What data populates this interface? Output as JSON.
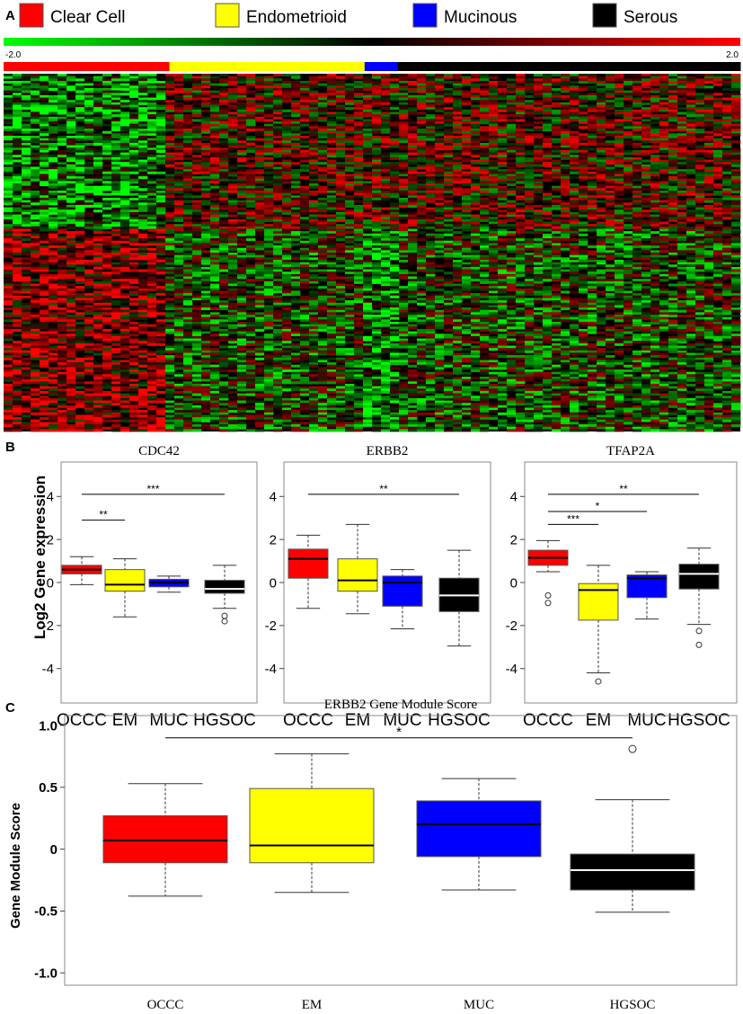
{
  "panel_labels": {
    "a": "A",
    "b": "B",
    "c": "C"
  },
  "legend": [
    {
      "label": "Clear Cell",
      "color": "#ff0000"
    },
    {
      "label": "Endometrioid",
      "color": "#ffff00"
    },
    {
      "label": "Mucinous",
      "color": "#0000ff"
    },
    {
      "label": "Serous",
      "color": "#000000"
    }
  ],
  "colors": {
    "clear_cell": "#ff0000",
    "endometrioid": "#ffff00",
    "mucinous": "#0000ff",
    "serous": "#000000",
    "heat_low": "#00ff00",
    "heat_mid": "#000000",
    "heat_high": "#ff0000"
  },
  "chart_data": [
    {
      "type": "heatmap",
      "color_scale": {
        "min_label": "-2.0",
        "max_label": "2.0",
        "min": -2.0,
        "max": 2.0
      },
      "sample_groups": [
        {
          "group": "Clear Cell",
          "fraction": 0.225
        },
        {
          "group": "Endometrioid",
          "fraction": 0.265
        },
        {
          "group": "Mucinous",
          "fraction": 0.045
        },
        {
          "group": "Serous",
          "fraction": 0.465
        }
      ]
    },
    {
      "type": "boxplot",
      "title": "CDC42",
      "ylabel": "Log2 Gene expression",
      "ylim": [
        -5.6,
        5.6
      ],
      "yticks": [
        "4",
        "2",
        "0",
        "-2",
        "-4"
      ],
      "categories": [
        "OCCC",
        "EM",
        "MUC",
        "HGSOC"
      ],
      "boxes": [
        {
          "category": "OCCC",
          "color": "#ff0000",
          "median_color": "#000000",
          "min": -0.1,
          "q1": 0.4,
          "median": 0.6,
          "q3": 0.8,
          "max": 1.2,
          "outliers": []
        },
        {
          "category": "EM",
          "color": "#ffff00",
          "median_color": "#000000",
          "min": -1.6,
          "q1": -0.4,
          "median": -0.1,
          "q3": 0.6,
          "max": 1.1,
          "outliers": []
        },
        {
          "category": "MUC",
          "color": "#0000ff",
          "median_color": "#000000",
          "min": -0.45,
          "q1": -0.2,
          "median": 0.0,
          "q3": 0.15,
          "max": 0.3,
          "outliers": []
        },
        {
          "category": "HGSOC",
          "color": "#000000",
          "median_color": "#ffffff",
          "min": -1.2,
          "q1": -0.5,
          "median": -0.3,
          "q3": 0.1,
          "max": 0.8,
          "outliers": [
            -1.55,
            -1.8
          ]
        }
      ],
      "significance": [
        {
          "from": "OCCC",
          "to": "EM",
          "y": 2.9,
          "label": "**"
        },
        {
          "from": "OCCC",
          "to": "HGSOC",
          "y": 4.1,
          "label": "***"
        }
      ]
    },
    {
      "type": "boxplot",
      "title": "ERBB2",
      "ylim": [
        -5.6,
        5.6
      ],
      "yticks": [
        "4",
        "2",
        "0",
        "-2",
        "-4"
      ],
      "categories": [
        "OCCC",
        "EM",
        "MUC",
        "HGSOC"
      ],
      "boxes": [
        {
          "category": "OCCC",
          "color": "#ff0000",
          "median_color": "#000000",
          "min": -1.2,
          "q1": 0.2,
          "median": 1.1,
          "q3": 1.55,
          "max": 2.2,
          "outliers": []
        },
        {
          "category": "EM",
          "color": "#ffff00",
          "median_color": "#000000",
          "min": -1.45,
          "q1": -0.4,
          "median": 0.1,
          "q3": 1.1,
          "max": 2.7,
          "outliers": []
        },
        {
          "category": "MUC",
          "color": "#0000ff",
          "median_color": "#000000",
          "min": -2.15,
          "q1": -1.1,
          "median": 0.0,
          "q3": 0.3,
          "max": 0.6,
          "outliers": []
        },
        {
          "category": "HGSOC",
          "color": "#000000",
          "median_color": "#ffffff",
          "min": -2.95,
          "q1": -1.35,
          "median": -0.6,
          "q3": 0.2,
          "max": 1.5,
          "outliers": []
        }
      ],
      "significance": [
        {
          "from": "OCCC",
          "to": "HGSOC",
          "y": 4.1,
          "label": "**"
        }
      ]
    },
    {
      "type": "boxplot",
      "title": "TFAP2A",
      "ylim": [
        -5.6,
        5.6
      ],
      "yticks": [
        "4",
        "2",
        "0",
        "-2",
        "-4"
      ],
      "categories": [
        "OCCC",
        "EM",
        "MUC",
        "HGSOC"
      ],
      "boxes": [
        {
          "category": "OCCC",
          "color": "#ff0000",
          "median_color": "#000000",
          "min": 0.5,
          "q1": 0.8,
          "median": 1.15,
          "q3": 1.5,
          "max": 1.95,
          "outliers": [
            -0.6,
            -0.95
          ]
        },
        {
          "category": "EM",
          "color": "#ffff00",
          "median_color": "#000000",
          "min": -4.2,
          "q1": -1.75,
          "median": -0.35,
          "q3": -0.05,
          "max": 0.8,
          "outliers": [
            -4.6
          ]
        },
        {
          "category": "MUC",
          "color": "#0000ff",
          "median_color": "#000000",
          "min": -1.7,
          "q1": -0.7,
          "median": 0.2,
          "q3": 0.35,
          "max": 0.5,
          "outliers": []
        },
        {
          "category": "HGSOC",
          "color": "#000000",
          "median_color": "#ffffff",
          "min": -1.95,
          "q1": -0.3,
          "median": 0.4,
          "q3": 0.85,
          "max": 1.6,
          "outliers": [
            -2.25,
            -2.9
          ]
        }
      ],
      "significance": [
        {
          "from": "OCCC",
          "to": "EM",
          "y": 2.7,
          "label": "***"
        },
        {
          "from": "OCCC",
          "to": "MUC",
          "y": 3.3,
          "label": "*"
        },
        {
          "from": "OCCC",
          "to": "HGSOC",
          "y": 4.1,
          "label": "**"
        }
      ]
    },
    {
      "type": "boxplot",
      "title": "ERBB2 Gene Module Score",
      "ylabel": "Gene Module Score",
      "ylim": [
        -1.1,
        1.08
      ],
      "yticks": [
        "1.0",
        "0.5",
        "0",
        "-0.5",
        "-1.0"
      ],
      "categories": [
        "OCCC",
        "EM",
        "MUC",
        "HGSOC"
      ],
      "boxes": [
        {
          "category": "OCCC",
          "color": "#ff0000",
          "median_color": "#000000",
          "min": -0.38,
          "q1": -0.11,
          "median": 0.07,
          "q3": 0.27,
          "max": 0.53,
          "outliers": []
        },
        {
          "category": "EM",
          "color": "#ffff00",
          "median_color": "#000000",
          "min": -0.35,
          "q1": -0.11,
          "median": 0.03,
          "q3": 0.49,
          "max": 0.77,
          "outliers": []
        },
        {
          "category": "MUC",
          "color": "#0000ff",
          "median_color": "#000000",
          "min": -0.33,
          "q1": -0.06,
          "median": 0.2,
          "q3": 0.39,
          "max": 0.57,
          "outliers": []
        },
        {
          "category": "HGSOC",
          "color": "#000000",
          "median_color": "#ffffff",
          "min": -0.51,
          "q1": -0.33,
          "median": -0.17,
          "q3": -0.04,
          "max": 0.4,
          "outliers": [
            0.81
          ]
        }
      ],
      "significance": [
        {
          "from": "OCCC",
          "to": "HGSOC",
          "y": 0.9,
          "label": "*"
        }
      ]
    }
  ]
}
